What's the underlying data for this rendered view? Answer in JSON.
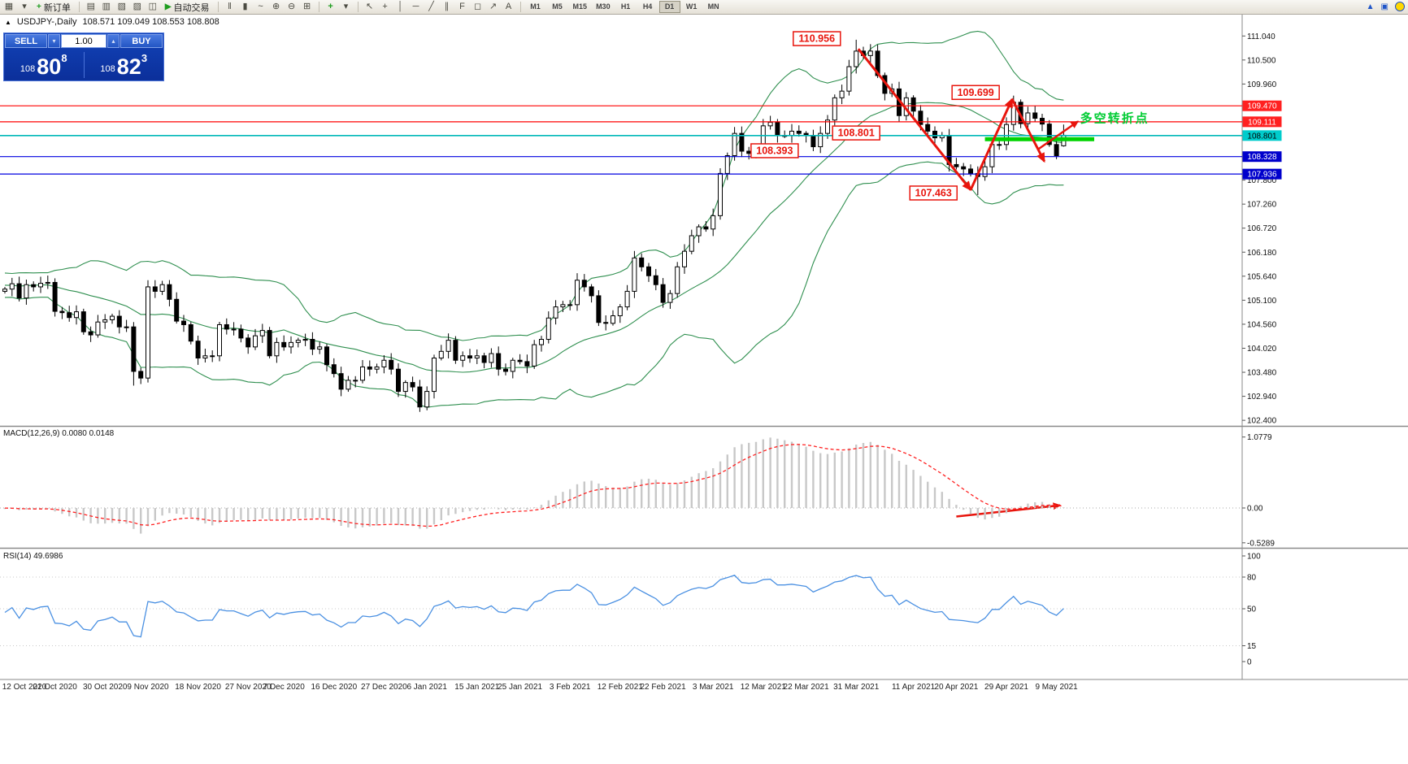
{
  "chart_header": {
    "symbol_title": "USDJPY-,Daily",
    "ohlc": "108.571 109.049 108.553 108.808"
  },
  "toolbar": {
    "groups": [
      {
        "type": "icons",
        "items": [
          {
            "name": "chart-window-icon",
            "glyph": "▦"
          },
          {
            "name": "window-dropdown-icon",
            "glyph": "▾"
          }
        ]
      },
      {
        "type": "button",
        "name": "new-order-button",
        "icon": "+",
        "icon_name": "plus-icon",
        "icon_color": "#1f9d1f",
        "label": "新订单"
      },
      {
        "type": "sep"
      },
      {
        "type": "icons",
        "items": [
          {
            "name": "market-watch-icon",
            "glyph": "▤"
          },
          {
            "name": "data-window-icon",
            "glyph": "▥"
          },
          {
            "name": "navigator-icon",
            "glyph": "▧"
          },
          {
            "name": "terminal-icon",
            "glyph": "▨"
          },
          {
            "name": "strategy-tester-icon",
            "glyph": "◫"
          }
        ]
      },
      {
        "type": "button",
        "name": "auto-trading-button",
        "icon": "▶",
        "icon_name": "play-icon",
        "icon_color": "#1f9d1f",
        "label": "自动交易"
      },
      {
        "type": "sep"
      },
      {
        "type": "icons",
        "items": [
          {
            "name": "bar-chart-icon",
            "glyph": "‖"
          },
          {
            "name": "candlestick-chart-icon",
            "glyph": "▮"
          },
          {
            "name": "line-chart-icon",
            "glyph": "~"
          },
          {
            "name": "zoom-in-icon",
            "glyph": "⊕"
          },
          {
            "name": "zoom-out-icon",
            "glyph": "⊖"
          },
          {
            "name": "tile-windows-icon",
            "glyph": "⊞"
          }
        ]
      },
      {
        "type": "sep"
      },
      {
        "type": "icons",
        "items": [
          {
            "name": "indicators-icon",
            "glyph": "+",
            "color": "#1f9d1f"
          },
          {
            "name": "periods-dropdown-icon",
            "glyph": "▾"
          }
        ]
      },
      {
        "type": "sep"
      },
      {
        "type": "icons",
        "items": [
          {
            "name": "cursor-icon",
            "glyph": "↖"
          },
          {
            "name": "crosshair-icon",
            "glyph": "+"
          },
          {
            "name": "vertical-line-icon",
            "glyph": "│"
          },
          {
            "name": "horizontal-line-icon",
            "glyph": "─"
          },
          {
            "name": "trendline-icon",
            "glyph": "╱"
          },
          {
            "name": "channel-icon",
            "glyph": "∥"
          },
          {
            "name": "fibonacci-icon",
            "glyph": "F"
          },
          {
            "name": "shapes-icon",
            "glyph": "◻"
          },
          {
            "name": "arrow-tool-icon",
            "glyph": "↗"
          },
          {
            "name": "text-tool-icon",
            "glyph": "A"
          }
        ]
      },
      {
        "type": "sep"
      },
      {
        "type": "timeframes",
        "items": [
          "M1",
          "M5",
          "M15",
          "M30",
          "H1",
          "H4",
          "D1",
          "W1",
          "MN"
        ],
        "active": "D1"
      }
    ]
  },
  "quote_panel": {
    "sell_label": "SELL",
    "buy_label": "BUY",
    "lot_size": "1.00",
    "sell_price": {
      "prefix": "108",
      "big": "80",
      "sup": "8"
    },
    "buy_price": {
      "prefix": "108",
      "big": "82",
      "sup": "3"
    }
  },
  "indicators": {
    "macd_label": "MACD(12,26,9) 0.0080 0.0148",
    "rsi_label": "RSI(14) 49.6986",
    "macd_axis": [
      "1.0779",
      "0.00",
      "-0.5289"
    ],
    "rsi_axis": [
      "100",
      "80",
      "50",
      "15",
      "0"
    ],
    "rsi_levels": [
      80,
      50,
      15
    ]
  },
  "axis": {
    "price_labels": [
      "111.040",
      "110.500",
      "109.960",
      "107.800",
      "107.260",
      "106.720",
      "106.180",
      "105.640",
      "105.100",
      "104.560",
      "104.020",
      "103.480",
      "102.940",
      "102.400"
    ],
    "date_labels": [
      {
        "text": "12 Oct 2020",
        "bar": 0
      },
      {
        "text": "21 Oct 2020",
        "bar": 7
      },
      {
        "text": "30 Oct 2020",
        "bar": 14
      },
      {
        "text": "9 Nov 2020",
        "bar": 20
      },
      {
        "text": "18 Nov 2020",
        "bar": 27
      },
      {
        "text": "27 Nov 2020",
        "bar": 34
      },
      {
        "text": "7 Dec 2020",
        "bar": 39
      },
      {
        "text": "16 Dec 2020",
        "bar": 46
      },
      {
        "text": "27 Dec 2020",
        "bar": 53
      },
      {
        "text": "6 Jan 2021",
        "bar": 59
      },
      {
        "text": "15 Jan 2021",
        "bar": 66
      },
      {
        "text": "25 Jan 2021",
        "bar": 72
      },
      {
        "text": "3 Feb 2021",
        "bar": 79
      },
      {
        "text": "12 Feb 2021",
        "bar": 86
      },
      {
        "text": "22 Feb 2021",
        "bar": 92
      },
      {
        "text": "3 Mar 2021",
        "bar": 99
      },
      {
        "text": "12 Mar 2021",
        "bar": 106
      },
      {
        "text": "22 Mar 2021",
        "bar": 112
      },
      {
        "text": "31 Mar 2021",
        "bar": 119
      },
      {
        "text": "11 Apr 2021",
        "bar": 127
      },
      {
        "text": "20 Apr 2021",
        "bar": 133
      },
      {
        "text": "29 Apr 2021",
        "bar": 140
      },
      {
        "text": "9 May 2021",
        "bar": 147
      }
    ]
  },
  "annotations": {
    "price_callouts": [
      {
        "text": "110.956",
        "bar": 113.5,
        "price": 110.98
      },
      {
        "text": "109.699",
        "bar": 135.7,
        "price": 109.77
      },
      {
        "text": "108.801",
        "bar": 119.0,
        "price": 108.86
      },
      {
        "text": "108.393",
        "bar": 107.6,
        "price": 108.46
      },
      {
        "text": "107.463",
        "bar": 129.8,
        "price": 107.51
      }
    ],
    "hlines": [
      {
        "label": "109.470",
        "price": 109.47,
        "color": "#ff0000",
        "width": 1.2,
        "badge_bg": "#ff2020",
        "badge_fg": "#ffffff"
      },
      {
        "label": "109.111",
        "price": 109.111,
        "color": "#ff0000",
        "width": 1.2,
        "badge_bg": "#ff2020",
        "badge_fg": "#ffffff"
      },
      {
        "label": "108.801",
        "price": 108.801,
        "color": "#00b8b8",
        "width": 1.6,
        "badge_bg": "#00cccc",
        "badge_fg": "#000000"
      },
      {
        "label": "108.328",
        "price": 108.328,
        "color": "#0000e0",
        "width": 1.2,
        "badge_bg": "#0000cc",
        "badge_fg": "#ffffff"
      },
      {
        "label": "107.936",
        "price": 107.936,
        "color": "#0000e0",
        "width": 1.2,
        "badge_bg": "#0000cc",
        "badge_fg": "#ffffff"
      }
    ],
    "green_segment": {
      "from_bar": 137,
      "to_x": 1346,
      "price": 108.72,
      "color": "#00d400"
    },
    "note": {
      "text": "多空转折点",
      "bar": 150.3,
      "price": 109.1,
      "color": "#00cc33"
    },
    "trend_arrows": [
      {
        "pane": "price",
        "from": [
          119.3,
          110.75
        ],
        "to": [
          135,
          107.58
        ],
        "width": 3
      },
      {
        "pane": "price",
        "from": [
          135,
          107.58
        ],
        "to": [
          140.8,
          109.62
        ],
        "width": 3
      },
      {
        "pane": "price",
        "from": [
          140.8,
          109.62
        ],
        "to": [
          145.3,
          108.22
        ],
        "width": 3
      },
      {
        "pane": "price",
        "from": [
          144.5,
          108.5
        ],
        "to": [
          150,
          109.12
        ],
        "width": 2.5
      },
      {
        "pane": "macd",
        "from": [
          133,
          -0.13
        ],
        "to": [
          147.5,
          0.04
        ],
        "width": 2.5
      }
    ]
  },
  "chart_data": {
    "type": "candlestick",
    "symbol": "USDJPY-",
    "timeframe": "Daily",
    "title": "USDJPY-,Daily",
    "ohlc_display": {
      "open": 108.571,
      "high": 109.049,
      "low": 108.553,
      "close": 108.808
    },
    "ylim": [
      102.32,
      111.52
    ],
    "x_range": [
      "12 Oct 2020",
      "9 May 2021"
    ],
    "key_prices": {
      "major_high": 110.956,
      "swing_low": 107.463,
      "swing_high": 109.699,
      "pivot": 108.801,
      "minor_level": 108.393,
      "resistance_lines": [
        109.47,
        109.111
      ],
      "support_lines": [
        108.328,
        107.936
      ]
    },
    "overlays": {
      "bollinger": {
        "period": 20,
        "deviation": 2,
        "color": "#2f8f4f"
      },
      "macd": {
        "fast": 12,
        "slow": 26,
        "signal": 9,
        "main_value": 0.008,
        "signal_value": 0.0148,
        "axis_max": 1.0779,
        "axis_min": -0.5289
      },
      "rsi": {
        "period": 14,
        "value": 49.6986,
        "axis": [
          0,
          100
        ]
      }
    },
    "closes": [
      105.35,
      105.47,
      105.15,
      105.45,
      105.4,
      105.48,
      105.5,
      104.85,
      104.82,
      104.71,
      104.84,
      104.39,
      104.32,
      104.61,
      104.66,
      104.74,
      104.5,
      104.5,
      103.5,
      103.35,
      105.4,
      105.3,
      105.45,
      105.12,
      104.63,
      104.55,
      104.18,
      103.8,
      103.85,
      103.85,
      104.55,
      104.45,
      104.45,
      104.25,
      104.05,
      104.3,
      104.42,
      103.85,
      104.15,
      104.05,
      104.15,
      104.2,
      104.22,
      104.0,
      104.05,
      103.65,
      103.45,
      103.1,
      103.3,
      103.3,
      103.6,
      103.55,
      103.6,
      103.75,
      103.55,
      103.05,
      103.25,
      103.15,
      102.7,
      103.05,
      103.8,
      103.95,
      104.2,
      103.75,
      103.85,
      103.8,
      103.85,
      103.7,
      103.9,
      103.55,
      103.5,
      103.75,
      103.72,
      103.62,
      104.1,
      104.22,
      104.7,
      104.95,
      105.0,
      105.0,
      105.55,
      105.4,
      105.2,
      104.6,
      104.58,
      104.75,
      104.95,
      105.3,
      106.05,
      105.85,
      105.65,
      105.45,
      105.05,
      105.25,
      105.85,
      106.2,
      106.55,
      106.75,
      106.7,
      107.0,
      107.95,
      108.35,
      108.85,
      108.45,
      108.4,
      108.5,
      109.02,
      109.1,
      108.8,
      108.8,
      108.9,
      108.85,
      108.8,
      108.55,
      108.85,
      109.15,
      109.65,
      109.8,
      110.35,
      110.7,
      110.6,
      110.7,
      110.15,
      109.75,
      109.85,
      109.25,
      109.65,
      109.35,
      109.05,
      108.9,
      108.75,
      108.8,
      108.15,
      108.1,
      108.05,
      107.95,
      107.88,
      108.1,
      108.6,
      108.6,
      109.05,
      109.55,
      109.07,
      109.31,
      109.19,
      109.06,
      108.6,
      108.35,
      108.808
    ],
    "overrides": {
      "18": {
        "l": 103.18
      },
      "20": {
        "l": 103.25
      },
      "58": {
        "l": 102.59
      },
      "119": {
        "h": 110.956
      },
      "136": {
        "l": 107.463
      },
      "141": {
        "h": 109.699
      },
      "147": {
        "l": 108.27
      },
      "148": {
        "o": 108.571,
        "h": 109.049,
        "l": 108.553,
        "c": 108.808
      }
    }
  },
  "colors": {
    "candle_up": "#ffffff",
    "candle_down": "#000000",
    "bollinger": "#2f8f4f",
    "macd_hist": "#c8c8c8",
    "macd_signal": "#ff2020",
    "rsi_line": "#4a90e2",
    "arrow_red": "#e8150d",
    "note_green": "#00cc33"
  }
}
